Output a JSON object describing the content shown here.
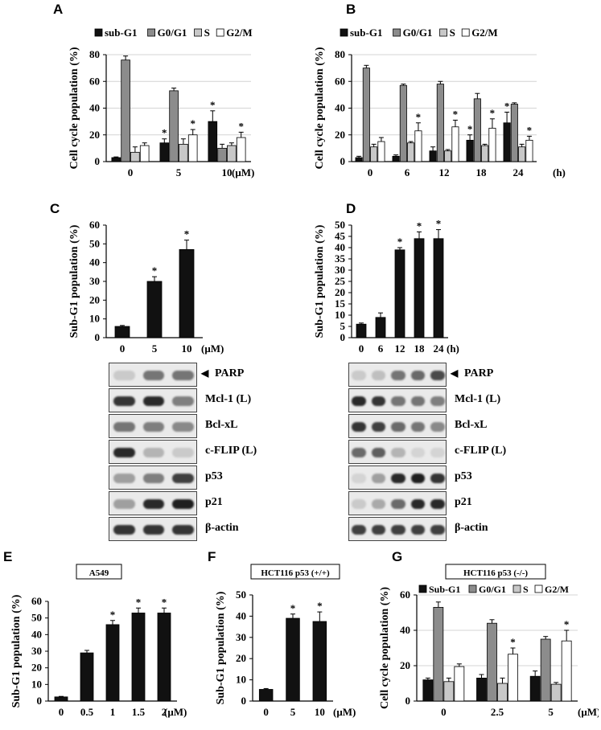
{
  "panels": {
    "A": {
      "letter": "A"
    },
    "B": {
      "letter": "B"
    },
    "C": {
      "letter": "C"
    },
    "D": {
      "letter": "D"
    },
    "E": {
      "letter": "E"
    },
    "F": {
      "letter": "F"
    },
    "G": {
      "letter": "G"
    }
  },
  "colors": {
    "sub_g1": "#111111",
    "g0_g1": "#8c8c8c",
    "s": "#c8c8c8",
    "g2_m": "#ffffff"
  },
  "legend": [
    "sub-G1",
    "G0/G1",
    "S",
    "G2/M"
  ],
  "legend_g": [
    "Sub-G1",
    "G0/G1",
    "S",
    "G2/M"
  ],
  "blots": {
    "left_labels": [
      "PARP",
      "Mcl-1 (L)",
      "Bcl-xL",
      "c-FLIP (L)",
      "p53",
      "p21",
      "β-actin"
    ],
    "right_labels": [
      "PARP",
      "Mcl-1 (L)",
      "Bcl-xL",
      "c-FLIP (L)",
      "p53",
      "p21",
      "β-actin"
    ],
    "arrow": "◀"
  },
  "chart_data": [
    {
      "id": "A",
      "type": "bar",
      "ylabel": "Cell cycle population (%)",
      "xunit": "(μM)",
      "categories": [
        "0",
        "5",
        "10"
      ],
      "ylim": [
        0,
        80
      ],
      "yticks": [
        0,
        20,
        40,
        60,
        80
      ],
      "series": [
        {
          "name": "sub-G1",
          "values": [
            3,
            14,
            30
          ],
          "err": [
            0.5,
            3,
            8
          ],
          "star": [
            false,
            true,
            true
          ]
        },
        {
          "name": "G0/G1",
          "values": [
            76,
            53,
            10
          ],
          "err": [
            3,
            2,
            3
          ],
          "star": [
            false,
            false,
            false
          ]
        },
        {
          "name": "S",
          "values": [
            7,
            13,
            12
          ],
          "err": [
            4,
            4,
            2
          ],
          "star": [
            false,
            false,
            false
          ]
        },
        {
          "name": "G2/M",
          "values": [
            12,
            20,
            18
          ],
          "err": [
            2,
            4,
            4
          ],
          "star": [
            false,
            true,
            true
          ]
        }
      ]
    },
    {
      "id": "B",
      "type": "bar",
      "ylabel": "Cell cycle population (%)",
      "xunit": "(h)",
      "categories": [
        "0",
        "6",
        "12",
        "18",
        "24"
      ],
      "ylim": [
        0,
        80
      ],
      "yticks": [
        0,
        20,
        40,
        60,
        80
      ],
      "series": [
        {
          "name": "sub-G1",
          "values": [
            3,
            4,
            8,
            16,
            29
          ],
          "err": [
            1,
            1,
            3,
            4,
            8
          ],
          "star": [
            false,
            false,
            false,
            true,
            true
          ]
        },
        {
          "name": "G0/G1",
          "values": [
            70,
            57,
            58,
            47,
            43
          ],
          "err": [
            2,
            1,
            2,
            4,
            1
          ],
          "star": [
            false,
            false,
            false,
            false,
            false
          ]
        },
        {
          "name": "S",
          "values": [
            11,
            14,
            8,
            12,
            11
          ],
          "err": [
            2,
            1,
            1,
            1,
            2
          ],
          "star": [
            false,
            false,
            false,
            false,
            false
          ]
        },
        {
          "name": "G2/M",
          "values": [
            15,
            23,
            26,
            25,
            16
          ],
          "err": [
            3,
            6,
            5,
            7,
            3
          ],
          "star": [
            false,
            true,
            true,
            true,
            true
          ]
        }
      ]
    },
    {
      "id": "C",
      "type": "bar",
      "ylabel": "Sub-G1 population (%)",
      "xunit": "(μM)",
      "categories": [
        "0",
        "5",
        "10"
      ],
      "ylim": [
        0,
        60
      ],
      "yticks": [
        0,
        10,
        20,
        30,
        40,
        50,
        60
      ],
      "series": [
        {
          "name": "",
          "values": [
            6,
            30,
            47
          ],
          "err": [
            0.5,
            2.5,
            5
          ],
          "star": [
            false,
            true,
            true
          ]
        }
      ]
    },
    {
      "id": "D",
      "type": "bar",
      "ylabel": "Sub-G1 population (%)",
      "xunit": "(h)",
      "categories": [
        "0",
        "6",
        "12",
        "18",
        "24"
      ],
      "ylim": [
        0,
        50
      ],
      "yticks": [
        0,
        5,
        10,
        15,
        20,
        25,
        30,
        35,
        40,
        45,
        50
      ],
      "series": [
        {
          "name": "",
          "values": [
            6,
            9,
            39,
            44,
            44
          ],
          "err": [
            0.5,
            2,
            1,
            3,
            4
          ],
          "star": [
            false,
            false,
            true,
            true,
            true
          ]
        }
      ]
    },
    {
      "id": "E",
      "type": "bar",
      "title": "A549",
      "ylabel": "Sub-G1 population (%)",
      "xunit": "(μM)",
      "categories": [
        "0",
        "0.5",
        "1",
        "1.5",
        "2"
      ],
      "ylim": [
        0,
        60
      ],
      "yticks": [
        0,
        10,
        20,
        30,
        40,
        50,
        60
      ],
      "series": [
        {
          "name": "",
          "values": [
            2.5,
            29,
            46,
            53,
            53
          ],
          "err": [
            0.3,
            1.5,
            2.5,
            3,
            3
          ],
          "star": [
            false,
            false,
            true,
            true,
            true
          ]
        }
      ]
    },
    {
      "id": "F",
      "type": "bar",
      "title": "HCT116 p53 (+/+)",
      "ylabel": "Sub-G1 population (%)",
      "xunit": "(μM)",
      "categories": [
        "0",
        "5",
        "10"
      ],
      "ylim": [
        0,
        50
      ],
      "yticks": [
        0,
        10,
        20,
        30,
        40,
        50
      ],
      "series": [
        {
          "name": "",
          "values": [
            5.5,
            39,
            37.5
          ],
          "err": [
            0.4,
            2,
            4.5
          ],
          "star": [
            false,
            true,
            true
          ]
        }
      ]
    },
    {
      "id": "G",
      "type": "bar",
      "title": "HCT116 p53 (-/-)",
      "ylabel": "Cell cycle population (%)",
      "xunit": "(μM)",
      "categories": [
        "0",
        "2.5",
        "5"
      ],
      "ylim": [
        0,
        60
      ],
      "yticks": [
        0,
        20,
        40,
        60
      ],
      "series": [
        {
          "name": "Sub-G1",
          "values": [
            12,
            13,
            14
          ],
          "err": [
            1,
            2,
            3
          ],
          "star": [
            false,
            false,
            false
          ]
        },
        {
          "name": "G0/G1",
          "values": [
            53,
            44,
            35
          ],
          "err": [
            3,
            2,
            1.5
          ],
          "star": [
            false,
            false,
            false
          ]
        },
        {
          "name": "S",
          "values": [
            11,
            10,
            9.5
          ],
          "err": [
            2,
            3,
            1
          ],
          "star": [
            false,
            false,
            false
          ]
        },
        {
          "name": "G2/M",
          "values": [
            19.5,
            26.5,
            34
          ],
          "err": [
            1.5,
            3.5,
            6
          ],
          "star": [
            false,
            true,
            true
          ]
        }
      ]
    }
  ]
}
